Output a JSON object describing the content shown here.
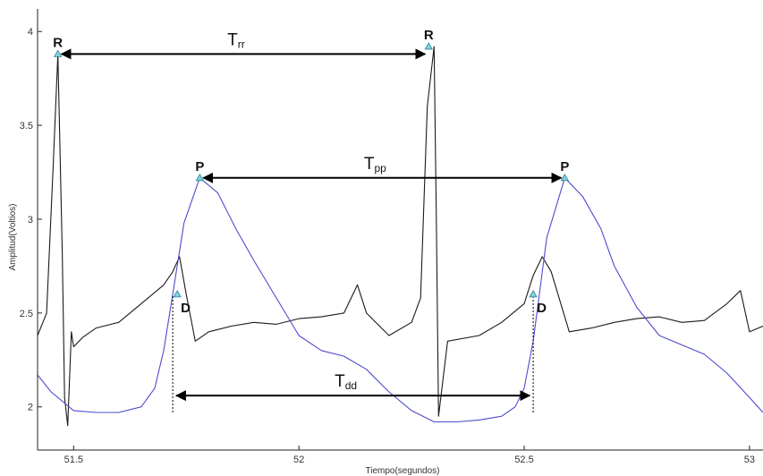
{
  "chart_data": {
    "type": "line",
    "xlabel": "Tiempo(segundos)",
    "ylabel": "Amplitud(Voltios)",
    "xlim": [
      51.42,
      53.03
    ],
    "ylim": [
      1.77,
      4.12
    ],
    "xticks": [
      51.5,
      52,
      52.5,
      53
    ],
    "xtick_labels": [
      "51.5",
      "52",
      "52.5",
      "53"
    ],
    "yticks": [
      2,
      2.5,
      3,
      3.5,
      4
    ],
    "ytick_labels": [
      "2",
      "2.5",
      "3",
      "3.5",
      "4"
    ],
    "grid": false,
    "series": [
      {
        "color": "#1a1a1a",
        "x": [
          51.42,
          51.44,
          51.455,
          51.465,
          51.475,
          51.48,
          51.487,
          51.495,
          51.5,
          51.52,
          51.55,
          51.6,
          51.65,
          51.7,
          51.72,
          51.735,
          51.75,
          51.77,
          51.8,
          51.85,
          51.9,
          51.95,
          52.0,
          52.05,
          52.1,
          52.13,
          52.15,
          52.2,
          52.25,
          52.27,
          52.285,
          52.3,
          52.305,
          52.31,
          52.33,
          52.4,
          52.45,
          52.5,
          52.52,
          52.54,
          52.56,
          52.6,
          52.65,
          52.7,
          52.75,
          52.8,
          52.85,
          52.9,
          52.95,
          52.98,
          53.0,
          53.03
        ],
        "y": [
          2.38,
          2.5,
          3.3,
          3.88,
          2.8,
          2.05,
          1.9,
          2.4,
          2.32,
          2.37,
          2.42,
          2.45,
          2.55,
          2.65,
          2.72,
          2.8,
          2.6,
          2.35,
          2.4,
          2.43,
          2.45,
          2.44,
          2.47,
          2.48,
          2.5,
          2.65,
          2.5,
          2.38,
          2.45,
          2.58,
          3.6,
          3.92,
          3.0,
          1.95,
          2.35,
          2.38,
          2.45,
          2.55,
          2.7,
          2.8,
          2.72,
          2.4,
          2.42,
          2.45,
          2.47,
          2.48,
          2.45,
          2.46,
          2.55,
          2.62,
          2.4,
          2.43
        ]
      },
      {
        "color": "#4b4bd0",
        "x": [
          51.42,
          51.45,
          51.5,
          51.55,
          51.6,
          51.65,
          51.68,
          51.7,
          51.72,
          51.745,
          51.78,
          51.82,
          51.86,
          51.9,
          51.95,
          52.0,
          52.05,
          52.1,
          52.15,
          52.2,
          52.25,
          52.3,
          52.35,
          52.4,
          52.45,
          52.48,
          52.5,
          52.52,
          52.55,
          52.59,
          52.63,
          52.67,
          52.7,
          52.75,
          52.8,
          52.85,
          52.9,
          52.95,
          53.0,
          53.03
        ],
        "y": [
          2.17,
          2.08,
          1.98,
          1.97,
          1.97,
          2.0,
          2.1,
          2.3,
          2.6,
          2.98,
          3.22,
          3.14,
          2.95,
          2.78,
          2.58,
          2.38,
          2.3,
          2.27,
          2.2,
          2.08,
          1.98,
          1.92,
          1.92,
          1.93,
          1.95,
          2.0,
          2.1,
          2.35,
          2.9,
          3.22,
          3.12,
          2.95,
          2.75,
          2.53,
          2.38,
          2.33,
          2.28,
          2.18,
          2.05,
          1.97
        ]
      }
    ],
    "peak_markers": [
      {
        "label": "R",
        "x": 51.465,
        "y": 3.88
      },
      {
        "label": "R",
        "x": 52.288,
        "y": 3.92
      },
      {
        "label": "P",
        "x": 51.78,
        "y": 3.22
      },
      {
        "label": "P",
        "x": 52.59,
        "y": 3.22
      },
      {
        "label": "D",
        "x": 51.73,
        "y": 2.6
      },
      {
        "label": "D",
        "x": 52.52,
        "y": 2.6
      }
    ],
    "intervals": [
      {
        "main": "T",
        "sub": "rr",
        "x1": 51.465,
        "x2": 52.288,
        "y": 3.88
      },
      {
        "main": "T",
        "sub": "pp",
        "x1": 51.78,
        "x2": 52.59,
        "y": 3.22
      },
      {
        "main": "T",
        "sub": "dd",
        "x1": 51.72,
        "x2": 52.52,
        "y": 2.06
      }
    ],
    "dotted_guides": [
      {
        "x": 51.72,
        "y1": 1.97,
        "y2": 2.6
      },
      {
        "x": 52.52,
        "y1": 1.97,
        "y2": 2.6
      }
    ],
    "marker_color": "#7fd6d6"
  }
}
